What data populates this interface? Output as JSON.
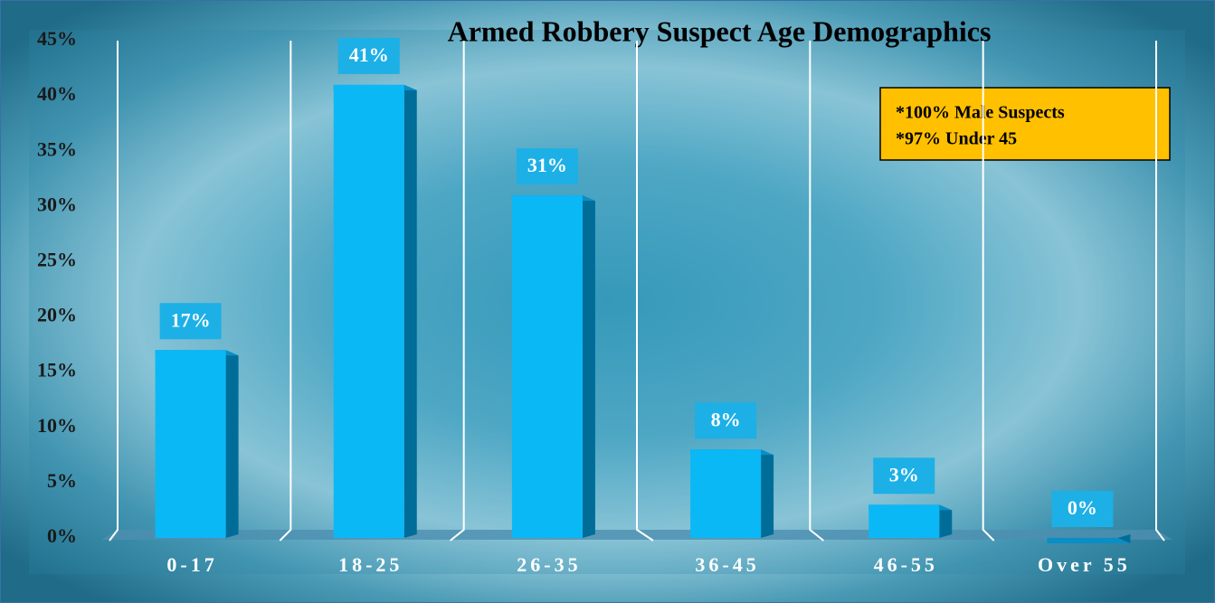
{
  "chart_data": {
    "type": "bar",
    "title": "Armed Robbery Suspect Age Demographics",
    "categories": [
      "0-17",
      "18-25",
      "26-35",
      "36-45",
      "46-55",
      "Over 55"
    ],
    "values": [
      17,
      41,
      31,
      8,
      3,
      0
    ],
    "value_labels": [
      "17%",
      "41%",
      "31%",
      "8%",
      "3%",
      "0%"
    ],
    "color": "#0bb8f6",
    "ylim": [
      0,
      45
    ],
    "yticks": [
      {
        "value": 0,
        "label": "0%"
      },
      {
        "value": 5,
        "label": "5%"
      },
      {
        "value": 10,
        "label": "10%"
      },
      {
        "value": 15,
        "label": "15%"
      },
      {
        "value": 20,
        "label": "20%"
      },
      {
        "value": 25,
        "label": "25%"
      },
      {
        "value": 30,
        "label": "30%"
      },
      {
        "value": 35,
        "label": "35%"
      },
      {
        "value": 40,
        "label": "40%"
      },
      {
        "value": 45,
        "label": "45%"
      }
    ],
    "annotations": [
      "*100% Male Suspects",
      "*97% Under 45"
    ]
  }
}
